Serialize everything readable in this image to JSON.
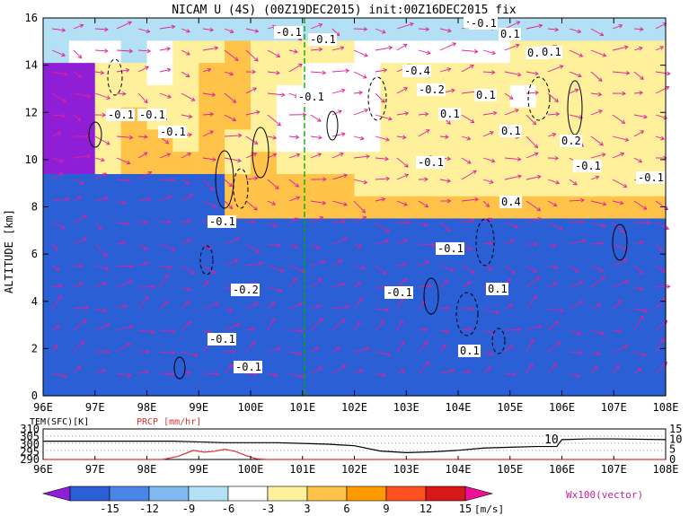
{
  "title": "NICAM U (4S) (00Z19DEC2015) init:00Z16DEC2015 fix",
  "main_panel": {
    "ylabel": "ALTITUDE [km]",
    "x_ticks": [
      "96E",
      "97E",
      "98E",
      "99E",
      "100E",
      "101E",
      "102E",
      "103E",
      "104E",
      "105E",
      "106E",
      "107E",
      "108E"
    ],
    "y_ticks": [
      "0",
      "2",
      "4",
      "6",
      "8",
      "10",
      "12",
      "14",
      "16"
    ],
    "contour_labels": [
      "-0.1",
      "-0.1",
      "-0.1",
      "-0.1",
      "-0.1",
      "-0.1",
      "-0.4",
      "-0.2",
      "0.1",
      "0.1",
      "0.1",
      "0.2",
      "0.2",
      "-0.1",
      "-0.1",
      "-0.1",
      "-0.1",
      "0.1",
      "0.4",
      "-0.1",
      "-0.1",
      "-0.2",
      "0.1",
      "-0.1",
      "0.1",
      "0.1",
      "-0.1",
      "-0.1",
      "-0.1"
    ]
  },
  "bottom_panel": {
    "left_label": "TEM(SFC)[K]",
    "right_label": "PRCP [mm/hr]",
    "left_ticks": [
      "310",
      "305",
      "300",
      "295",
      "290"
    ],
    "right_ticks": [
      "15",
      "10",
      "5",
      "0"
    ],
    "inline_label": "10",
    "x_ticks": [
      "96E",
      "97E",
      "98E",
      "99E",
      "100E",
      "101E",
      "102E",
      "103E",
      "104E",
      "105E",
      "106E",
      "107E",
      "108E"
    ]
  },
  "colorbar": {
    "ticks": [
      "-15",
      "-12",
      "-9",
      "-6",
      "-3",
      "3",
      "6",
      "9",
      "12",
      "15"
    ],
    "unit": "[m/s]",
    "colors": [
      "#8f1fd6",
      "#2a5fd6",
      "#4a86e6",
      "#80b8f0",
      "#b4e0f6",
      "#ffffff",
      "#fff19c",
      "#ffc34a",
      "#ff9a00",
      "#ff5020",
      "#d71818",
      "#ee0f96"
    ]
  },
  "vector_label": "Wx100(vector)",
  "colors": {
    "cross_section_line": "#00b000",
    "temperature_line": "#000000",
    "precip_line": "#e03030",
    "vector": "#e0209a"
  },
  "chart_data": [
    {
      "type": "heatmap",
      "title": "NICAM U (4S) (00Z19DEC2015) init:00Z16DEC2015 fix",
      "xlabel": "",
      "ylabel": "ALTITUDE [km]",
      "x_range": [
        "96E",
        "108E"
      ],
      "xlim": [
        96,
        108
      ],
      "ylim": [
        0,
        16
      ],
      "unit": "[m/s]",
      "levels": [
        -15,
        -12,
        -9,
        -6,
        -3,
        3,
        6,
        9,
        12,
        15
      ],
      "marked_longitude": 101,
      "grid": [
        [
          4,
          4,
          4,
          4,
          4,
          4,
          4,
          4,
          4,
          4,
          4,
          4,
          4,
          4,
          4,
          4,
          4,
          4,
          4,
          4,
          4,
          4,
          4,
          4
        ],
        [
          4,
          5,
          5,
          4,
          5,
          6,
          6,
          7,
          6,
          6,
          6,
          6,
          5,
          5,
          5,
          5,
          5,
          5,
          6,
          6,
          6,
          6,
          6,
          6
        ],
        [
          0,
          0,
          6,
          6,
          5,
          6,
          7,
          7,
          6,
          6,
          5,
          5,
          5,
          6,
          6,
          6,
          6,
          6,
          6,
          6,
          6,
          6,
          6,
          6
        ],
        [
          0,
          0,
          6,
          6,
          6,
          6,
          7,
          7,
          6,
          5,
          5,
          5,
          5,
          6,
          6,
          6,
          6,
          6,
          5,
          6,
          6,
          6,
          6,
          6
        ],
        [
          0,
          0,
          6,
          7,
          6,
          6,
          7,
          7,
          6,
          5,
          5,
          5,
          5,
          6,
          6,
          6,
          6,
          6,
          6,
          6,
          6,
          6,
          6,
          6
        ],
        [
          0,
          0,
          6,
          7,
          7,
          6,
          7,
          6,
          6,
          5,
          5,
          5,
          5,
          6,
          6,
          6,
          6,
          6,
          6,
          6,
          6,
          6,
          6,
          6
        ],
        [
          0,
          0,
          6,
          7,
          7,
          7,
          7,
          6,
          7,
          6,
          6,
          6,
          6,
          6,
          6,
          6,
          6,
          6,
          6,
          6,
          6,
          6,
          6,
          6
        ],
        [
          1,
          1,
          1,
          1,
          1,
          1,
          1,
          7,
          7,
          7,
          7,
          7,
          6,
          6,
          6,
          6,
          6,
          6,
          6,
          6,
          6,
          6,
          6,
          6
        ],
        [
          1,
          1,
          1,
          1,
          1,
          1,
          1,
          7,
          7,
          7,
          7,
          7,
          7,
          7,
          7,
          7,
          7,
          7,
          7,
          7,
          7,
          7,
          7,
          7
        ],
        [
          1,
          1,
          1,
          1,
          1,
          1,
          1,
          1,
          1,
          1,
          1,
          1,
          1,
          1,
          1,
          1,
          1,
          1,
          1,
          1,
          1,
          1,
          1,
          1
        ],
        [
          1,
          1,
          1,
          1,
          1,
          1,
          1,
          1,
          1,
          1,
          1,
          1,
          1,
          1,
          1,
          1,
          1,
          1,
          1,
          1,
          1,
          1,
          1,
          1
        ],
        [
          1,
          1,
          1,
          1,
          1,
          1,
          1,
          1,
          1,
          1,
          1,
          1,
          1,
          1,
          1,
          1,
          1,
          1,
          1,
          1,
          1,
          1,
          1,
          1
        ],
        [
          1,
          1,
          1,
          1,
          1,
          1,
          1,
          1,
          1,
          1,
          1,
          1,
          1,
          1,
          1,
          1,
          1,
          1,
          1,
          1,
          1,
          1,
          1,
          1
        ],
        [
          1,
          1,
          1,
          1,
          1,
          1,
          1,
          1,
          1,
          1,
          1,
          1,
          1,
          1,
          1,
          1,
          1,
          1,
          1,
          1,
          1,
          1,
          1,
          1
        ],
        [
          1,
          1,
          1,
          1,
          1,
          1,
          1,
          1,
          1,
          1,
          1,
          1,
          1,
          1,
          1,
          1,
          1,
          1,
          1,
          1,
          1,
          1,
          1,
          1
        ],
        [
          1,
          1,
          1,
          1,
          1,
          1,
          1,
          1,
          1,
          1,
          1,
          1,
          1,
          1,
          1,
          1,
          1,
          1,
          1,
          1,
          1,
          1,
          1,
          1
        ],
        [
          1,
          1,
          1,
          1,
          1,
          1,
          1,
          1,
          1,
          1,
          1,
          1,
          1,
          1,
          1,
          1,
          1,
          1,
          1,
          1,
          1,
          1,
          1,
          1
        ]
      ]
    },
    {
      "type": "line",
      "title": "",
      "xlim": [
        96,
        108
      ],
      "series": [
        {
          "name": "TEM(SFC)[K]",
          "ylim": [
            290,
            310
          ],
          "x": [
            96,
            98.5,
            99,
            99.5,
            100,
            100.5,
            101,
            101.5,
            102,
            102.5,
            103,
            103.5,
            104,
            104.5,
            105,
            105.5,
            105.9,
            106,
            106.5,
            107,
            108
          ],
          "values": [
            302,
            302,
            301.5,
            301,
            301,
            301,
            300.5,
            300,
            299,
            295.5,
            294.5,
            295,
            296,
            297.5,
            298,
            298.5,
            298.5,
            303,
            303.5,
            303.5,
            303
          ]
        },
        {
          "name": "PRCP [mm/hr]",
          "ylim": [
            0,
            15
          ],
          "x": [
            96,
            98.3,
            98.6,
            98.9,
            99.1,
            99.3,
            99.5,
            99.7,
            99.9,
            100.1,
            100.3,
            100.5,
            101,
            108
          ],
          "values": [
            0,
            0,
            1.5,
            4.5,
            3.6,
            4,
            5,
            4,
            2,
            0.4,
            0,
            0,
            0,
            0
          ]
        }
      ]
    },
    {
      "type": "colorbar",
      "title": "",
      "levels": [
        -15,
        -12,
        -9,
        -6,
        -3,
        3,
        6,
        9,
        12,
        15
      ],
      "unit": "[m/s]"
    }
  ]
}
